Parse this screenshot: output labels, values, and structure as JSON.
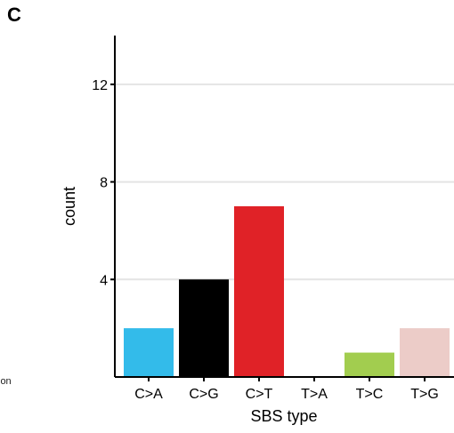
{
  "panel_label": "C",
  "stray_text": "ion",
  "chart_data": {
    "type": "bar",
    "categories": [
      "C>A",
      "C>G",
      "C>T",
      "T>A",
      "T>C",
      "T>G"
    ],
    "values": [
      2,
      4,
      7,
      0,
      1,
      2
    ],
    "colors": [
      "#33bbea",
      "#000000",
      "#e02227",
      "#cbcacb",
      "#a2cd4f",
      "#ecccc8"
    ],
    "xlabel": "SBS type",
    "ylabel": "count",
    "ylim": [
      0,
      14
    ],
    "yticks": [
      4,
      8,
      12
    ],
    "grid": "horizontal"
  }
}
